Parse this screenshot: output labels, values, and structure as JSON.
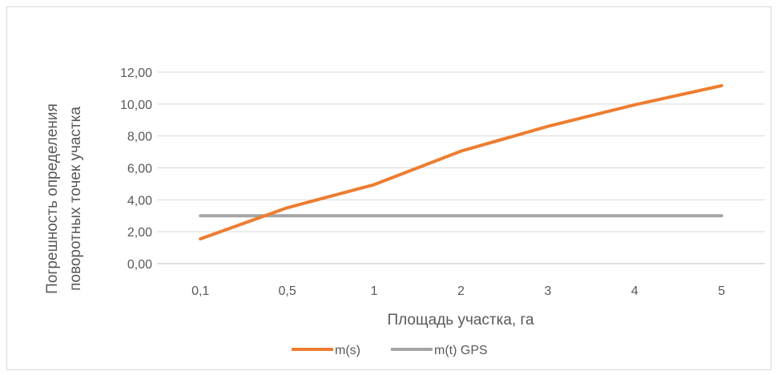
{
  "chart_data": {
    "type": "line",
    "title": "",
    "categories": [
      "0,1",
      "0,5",
      "1",
      "2",
      "3",
      "4",
      "5"
    ],
    "series": [
      {
        "name": "m(s)",
        "values": [
          1.55,
          3.5,
          4.95,
          7.05,
          8.6,
          9.95,
          11.15
        ],
        "color": "#ed7d31"
      },
      {
        "name": "m(t) GPS",
        "values": [
          3.0,
          3.0,
          3.0,
          3.0,
          3.0,
          3.0,
          3.0
        ],
        "color": "#a5a5a5"
      }
    ],
    "ylim": [
      0,
      12
    ],
    "yticks": [
      "0,00",
      "2,00",
      "4,00",
      "6,00",
      "8,00",
      "10,00",
      "12,00"
    ],
    "xlabel": "Площадь участка,  га",
    "ylabel_lines": [
      "Погрешность определения",
      "поворотных точек участка"
    ],
    "grid": true,
    "legend_position": "bottom"
  }
}
